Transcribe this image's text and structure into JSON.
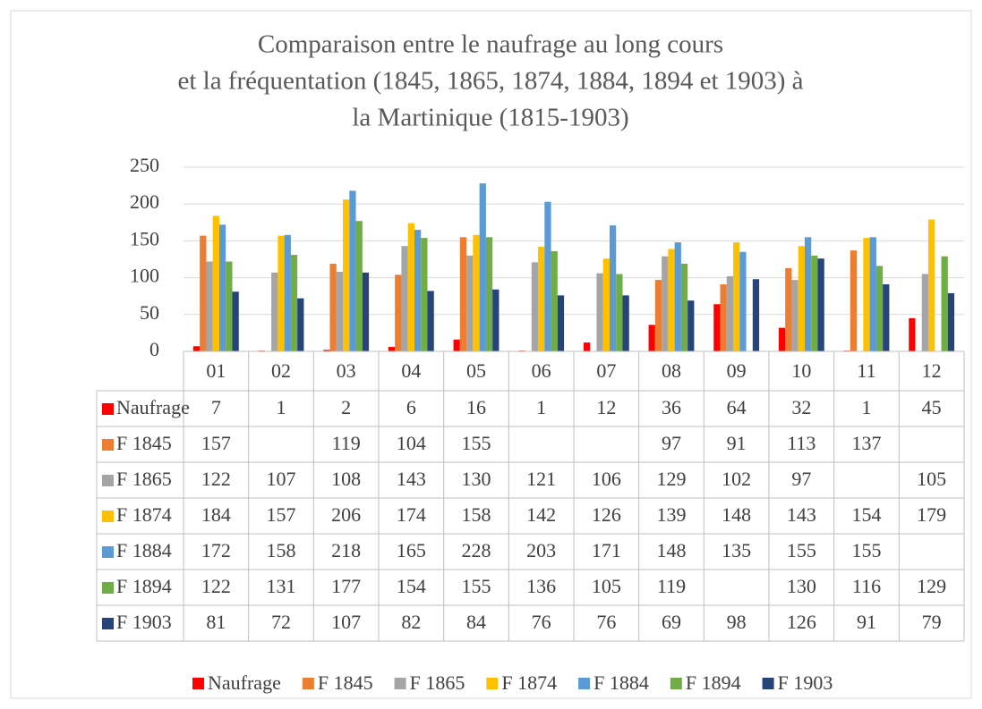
{
  "chart_data": {
    "type": "bar",
    "title_lines": [
      "Comparaison entre le naufrage au long cours",
      "et la fréquentation (1845, 1865, 1874, 1884, 1894 et 1903) à",
      "la Martinique (1815-1903)"
    ],
    "categories": [
      "01",
      "02",
      "03",
      "04",
      "05",
      "06",
      "07",
      "08",
      "09",
      "10",
      "11",
      "12"
    ],
    "series": [
      {
        "name": "Naufrage",
        "color": "#ff0000",
        "values": [
          7,
          1,
          2,
          6,
          16,
          1,
          12,
          36,
          64,
          32,
          1,
          45
        ]
      },
      {
        "name": "F 1845",
        "color": "#ed7d31",
        "values": [
          157,
          null,
          119,
          104,
          155,
          null,
          null,
          97,
          91,
          113,
          137,
          null
        ]
      },
      {
        "name": "F 1865",
        "color": "#a5a5a5",
        "values": [
          122,
          107,
          108,
          143,
          130,
          121,
          106,
          129,
          102,
          97,
          null,
          105
        ]
      },
      {
        "name": "F 1874",
        "color": "#ffc000",
        "values": [
          184,
          157,
          206,
          174,
          158,
          142,
          126,
          139,
          148,
          143,
          154,
          179
        ]
      },
      {
        "name": "F 1884",
        "color": "#5b9bd5",
        "values": [
          172,
          158,
          218,
          165,
          228,
          203,
          171,
          148,
          135,
          155,
          155,
          null
        ]
      },
      {
        "name": "F 1894",
        "color": "#70ad47",
        "values": [
          122,
          131,
          177,
          154,
          155,
          136,
          105,
          119,
          null,
          130,
          116,
          129
        ]
      },
      {
        "name": "F 1903",
        "color": "#264478",
        "values": [
          81,
          72,
          107,
          82,
          84,
          76,
          76,
          69,
          98,
          126,
          91,
          79
        ]
      }
    ],
    "ylim": [
      0,
      250
    ],
    "yticks": [
      0,
      50,
      100,
      150,
      200,
      250
    ],
    "grid": true,
    "data_table": true,
    "legend": "bottom"
  }
}
